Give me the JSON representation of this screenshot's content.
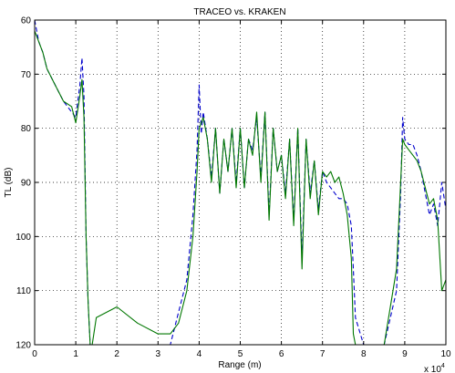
{
  "chart_data": {
    "type": "line",
    "title": "TRACEO vs. KRAKEN",
    "xlabel": "Range (m)",
    "ylabel": "TL (dB)",
    "x_multiplier_label": "x 10",
    "x_multiplier_exponent": "4",
    "xlim": [
      0,
      100000
    ],
    "ylim": [
      60,
      120
    ],
    "y_reversed": true,
    "grid": true,
    "grid_style": "dotted",
    "x_ticks": [
      0,
      10000,
      20000,
      30000,
      40000,
      50000,
      60000,
      70000,
      80000,
      90000,
      100000
    ],
    "x_tick_labels": [
      "0",
      "1",
      "2",
      "3",
      "4",
      "5",
      "6",
      "7",
      "8",
      "9",
      "10"
    ],
    "y_ticks": [
      60,
      70,
      80,
      90,
      100,
      110,
      120
    ],
    "y_tick_labels": [
      "60",
      "70",
      "80",
      "90",
      "100",
      "110",
      "120"
    ],
    "series": [
      {
        "color": "#0000cc",
        "style": "dashed",
        "x": [
          0,
          1000,
          2000,
          3000,
          5000,
          7000,
          9000,
          10000,
          11000,
          11500,
          12000,
          12500,
          13000,
          13500,
          14000,
          15000,
          20000,
          25000,
          30000,
          33000,
          35000,
          37000,
          38500,
          39500,
          40000,
          40500,
          41000,
          42000,
          43000,
          44000,
          45000,
          46000,
          47000,
          48000,
          49000,
          50000,
          51000,
          52000,
          53000,
          54000,
          55000,
          56000,
          57000,
          58000,
          59000,
          60000,
          61000,
          62000,
          63000,
          64000,
          65000,
          66000,
          67000,
          68000,
          69000,
          70000,
          71000,
          72000,
          73000,
          74000,
          75000,
          76000,
          77000,
          77500,
          78000,
          80000,
          85000,
          88000,
          89000,
          89500,
          90000,
          91000,
          92000,
          93000,
          94000,
          95000,
          96000,
          97000,
          98000,
          99000,
          100000
        ],
        "y": [
          60,
          64,
          66,
          69,
          72,
          75,
          77,
          78,
          72,
          67,
          74,
          100,
          112,
          120,
          120,
          120,
          120,
          120,
          120,
          120,
          114,
          108,
          96,
          84,
          72,
          81,
          77,
          82,
          89,
          80,
          92,
          82,
          88,
          80,
          90,
          80,
          91,
          82,
          84,
          78,
          89,
          77,
          96,
          80,
          88,
          85,
          92,
          82,
          97,
          80,
          104,
          82,
          92,
          86,
          95,
          88,
          90,
          91,
          92,
          93,
          93,
          94,
          98,
          106,
          115,
          120,
          120,
          110,
          92,
          78,
          82,
          83,
          83,
          85,
          88,
          92,
          96,
          94,
          98,
          90,
          95
        ]
      },
      {
        "color": "#007700",
        "style": "solid",
        "x": [
          0,
          1000,
          2000,
          3000,
          5000,
          7000,
          9000,
          10000,
          11000,
          11500,
          12000,
          12500,
          13000,
          13500,
          14000,
          15000,
          20000,
          25000,
          30000,
          33000,
          35000,
          37000,
          38500,
          39500,
          40000,
          40500,
          41000,
          42000,
          43000,
          44000,
          45000,
          46000,
          47000,
          48000,
          49000,
          50000,
          51000,
          52000,
          53000,
          54000,
          55000,
          56000,
          57000,
          58000,
          59000,
          60000,
          61000,
          62000,
          63000,
          64000,
          65000,
          66000,
          67000,
          68000,
          69000,
          70000,
          71000,
          72000,
          73000,
          74000,
          75000,
          76000,
          77000,
          77500,
          78000,
          80000,
          85000,
          88000,
          89000,
          89500,
          90000,
          91000,
          92000,
          93000,
          94000,
          95000,
          96000,
          97000,
          98000,
          99000,
          100000
        ],
        "y": [
          62,
          64,
          66,
          69,
          72,
          75,
          76,
          79,
          74,
          71,
          78,
          100,
          112,
          120,
          120,
          115,
          113,
          116,
          118,
          118,
          116,
          110,
          100,
          88,
          80,
          79,
          78,
          82,
          90,
          80,
          92,
          82,
          88,
          80,
          91,
          80,
          91,
          82,
          85,
          77,
          90,
          77,
          97,
          80,
          88,
          85,
          93,
          82,
          98,
          80,
          106,
          82,
          93,
          86,
          96,
          88,
          89,
          88,
          90,
          89,
          92,
          96,
          104,
          118,
          120,
          120,
          120,
          106,
          90,
          82,
          83,
          84,
          85,
          86,
          88,
          91,
          94,
          93,
          97,
          110,
          108
        ]
      }
    ]
  }
}
